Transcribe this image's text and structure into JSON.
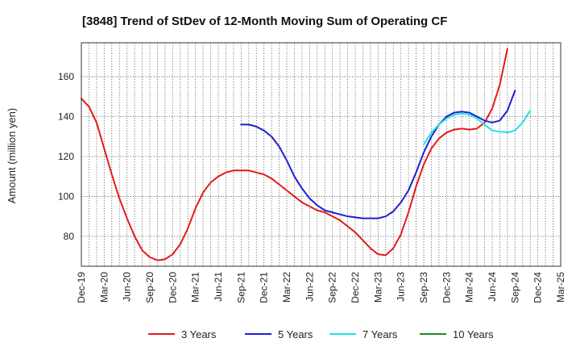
{
  "chart_data": {
    "type": "line",
    "title": "[3848]  Trend of StDev of 12-Month Moving Sum of Operating CF",
    "xlabel": "",
    "ylabel": "Amount (million yen)",
    "ylim": [
      65,
      177
    ],
    "yticks": [
      80,
      100,
      120,
      140,
      160
    ],
    "grid": true,
    "legend_position": "bottom",
    "x_tick_labels": [
      "Dec-19",
      "Mar-20",
      "Jun-20",
      "Sep-20",
      "Dec-20",
      "Mar-21",
      "Jun-21",
      "Sep-21",
      "Dec-21",
      "Mar-22",
      "Jun-22",
      "Sep-22",
      "Dec-22",
      "Mar-23",
      "Jun-23",
      "Sep-23",
      "Dec-23",
      "Mar-24",
      "Jun-24",
      "Sep-24",
      "Dec-24",
      "Mar-25"
    ],
    "series": [
      {
        "name": "3 Years",
        "color": "#e31a1c",
        "start_month_index": 0,
        "values": [
          149,
          145,
          137,
          124,
          111,
          99,
          89,
          80,
          73,
          69.5,
          68,
          68.5,
          71,
          76,
          84,
          94,
          102,
          107,
          110,
          112,
          113,
          113,
          113,
          112,
          111,
          109,
          106,
          103,
          100,
          97,
          95,
          93,
          92,
          90,
          88,
          85,
          82,
          78,
          74,
          71,
          70.5,
          74,
          81,
          92,
          105,
          116,
          124,
          129,
          132,
          133.5,
          134,
          133.5,
          134,
          137,
          144,
          156,
          174
        ]
      },
      {
        "name": "5 Years",
        "color": "#1f1fd0",
        "start_month_index": 21,
        "values": [
          136,
          136,
          135,
          133,
          130,
          125,
          118,
          110,
          104,
          99,
          95.5,
          93,
          92,
          91,
          90,
          89.5,
          89,
          89,
          89,
          90,
          92.5,
          97,
          103,
          112,
          122,
          130,
          136,
          140,
          142,
          142.5,
          142,
          140,
          138,
          137,
          138,
          143,
          153
        ]
      },
      {
        "name": "7 Years",
        "color": "#1ee3e8",
        "start_month_index": 45,
        "values": [
          126,
          132,
          136,
          139,
          141,
          141.5,
          141,
          139,
          136,
          133,
          132.5,
          132,
          133,
          137,
          143
        ]
      },
      {
        "name": "10 Years",
        "color": "#1f8a1f",
        "start_month_index": 0,
        "values": []
      }
    ]
  }
}
